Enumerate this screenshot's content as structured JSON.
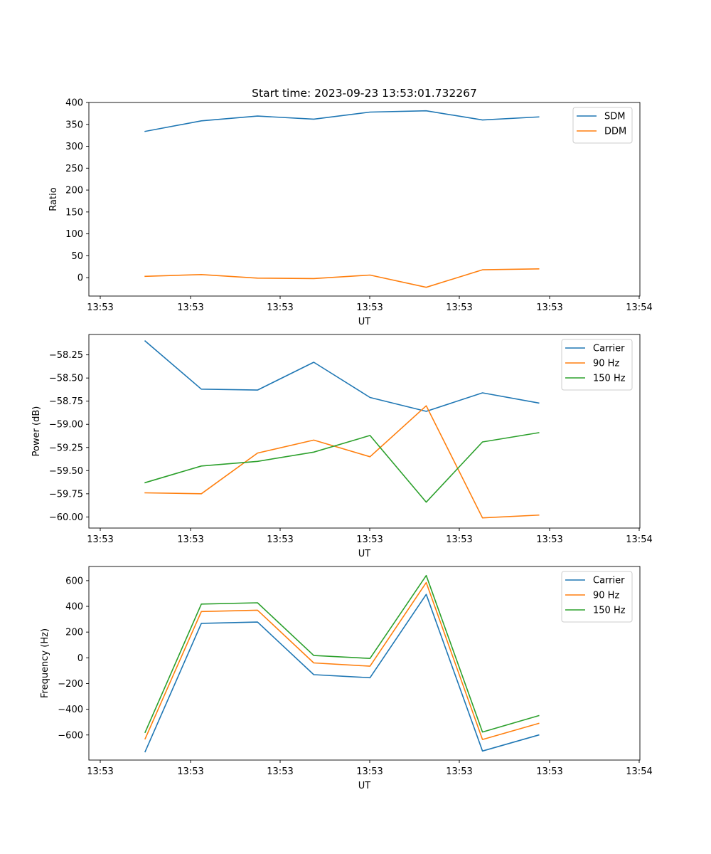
{
  "chart_data": [
    {
      "type": "line",
      "title": "Start time: 2023-09-23 13:53:01.732267",
      "xlabel": "UT",
      "ylabel": "Ratio",
      "xticks": [
        "13:53",
        "13:53",
        "13:53",
        "13:53",
        "13:53",
        "13:53",
        "13:54"
      ],
      "xlim": [
        -0.125,
        1.1
      ],
      "x": [
        0,
        0.125,
        0.25,
        0.375,
        0.5,
        0.625,
        0.75,
        0.875
      ],
      "ylim": [
        -42,
        400
      ],
      "yticks": [
        0,
        50,
        100,
        150,
        200,
        250,
        300,
        350,
        400
      ],
      "ytick_labels": [
        "0",
        "50",
        "100",
        "150",
        "200",
        "250",
        "300",
        "350",
        "400"
      ],
      "legend": "top-right",
      "series": [
        {
          "name": "SDM",
          "color": "#1f77b4",
          "values": [
            334,
            358,
            369,
            362,
            378,
            381,
            360,
            367
          ]
        },
        {
          "name": "DDM",
          "color": "#ff7f0e",
          "values": [
            3,
            7,
            -1,
            -2,
            6,
            -22,
            18,
            20
          ]
        }
      ]
    },
    {
      "type": "line",
      "title": "",
      "xlabel": "UT",
      "ylabel": "Power (dB)",
      "xticks": [
        "13:53",
        "13:53",
        "13:53",
        "13:53",
        "13:53",
        "13:53",
        "13:54"
      ],
      "xlim": [
        -0.125,
        1.1
      ],
      "x": [
        0,
        0.125,
        0.25,
        0.375,
        0.5,
        0.625,
        0.75,
        0.875
      ],
      "ylim": [
        -60.12,
        -58.03
      ],
      "yticks": [
        -60.0,
        -59.75,
        -59.5,
        -59.25,
        -59.0,
        -58.75,
        -58.5,
        -58.25
      ],
      "ytick_labels": [
        "−60.00",
        "−59.75",
        "−59.50",
        "−59.25",
        "−59.00",
        "−58.75",
        "−58.50",
        "−58.25"
      ],
      "legend": "top-right",
      "series": [
        {
          "name": "Carrier",
          "color": "#1f77b4",
          "values": [
            -58.1,
            -58.62,
            -58.63,
            -58.33,
            -58.71,
            -58.86,
            -58.66,
            -58.77
          ]
        },
        {
          "name": "90 Hz",
          "color": "#ff7f0e",
          "values": [
            -59.74,
            -59.75,
            -59.31,
            -59.17,
            -59.35,
            -58.8,
            -60.01,
            -59.98
          ]
        },
        {
          "name": "150 Hz",
          "color": "#2ca02c",
          "values": [
            -59.63,
            -59.45,
            -59.4,
            -59.3,
            -59.12,
            -59.84,
            -59.19,
            -59.09
          ]
        }
      ]
    },
    {
      "type": "line",
      "title": "",
      "xlabel": "UT",
      "ylabel": "Frequency (Hz)",
      "xticks": [
        "13:53",
        "13:53",
        "13:53",
        "13:53",
        "13:53",
        "13:53",
        "13:54"
      ],
      "xlim": [
        -0.125,
        1.1
      ],
      "x": [
        0,
        0.125,
        0.25,
        0.375,
        0.5,
        0.625,
        0.75,
        0.875
      ],
      "ylim": [
        -795,
        710
      ],
      "yticks": [
        -600,
        -400,
        -200,
        0,
        200,
        400,
        600
      ],
      "ytick_labels": [
        "−600",
        "−400",
        "−200",
        "0",
        "200",
        "400",
        "600"
      ],
      "legend": "top-right",
      "series": [
        {
          "name": "Carrier",
          "color": "#1f77b4",
          "values": [
            -730,
            268,
            278,
            -131,
            -155,
            493,
            -725,
            -600
          ]
        },
        {
          "name": "90 Hz",
          "color": "#ff7f0e",
          "values": [
            -630,
            360,
            370,
            -40,
            -65,
            585,
            -635,
            -510
          ]
        },
        {
          "name": "150 Hz",
          "color": "#2ca02c",
          "values": [
            -580,
            418,
            428,
            18,
            -5,
            640,
            -577,
            -450
          ]
        }
      ]
    }
  ]
}
